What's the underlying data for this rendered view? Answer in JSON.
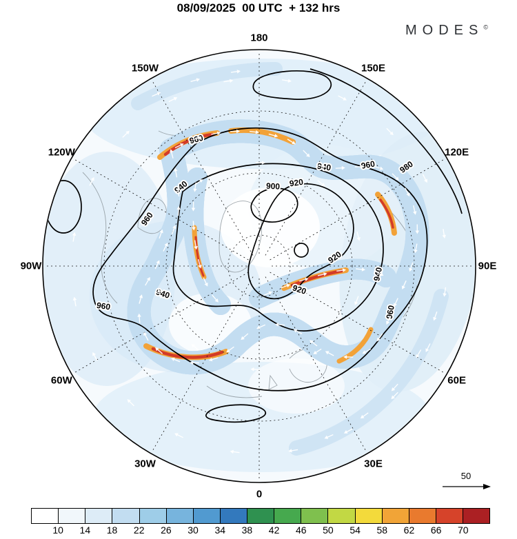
{
  "header": {
    "title": "08/09/2025  00 UTC  + 132 hrs",
    "brand": "MODES",
    "brand_mark": "©"
  },
  "map": {
    "lon_labels": [
      "180",
      "150E",
      "120E",
      "90E",
      "60E",
      "30E",
      "0",
      "30W",
      "60W",
      "90W",
      "120W",
      "150W"
    ],
    "contour_labels": {
      "h900": "900",
      "h920": "920",
      "h940": "940",
      "h960": "960",
      "h980": "980"
    },
    "reference_arrow_label": "50"
  },
  "colorbar": {
    "ticks": [
      "10",
      "14",
      "18",
      "22",
      "26",
      "30",
      "34",
      "38",
      "42",
      "46",
      "50",
      "54",
      "58",
      "62",
      "66",
      "70"
    ],
    "colors": [
      "#ffffff",
      "#f1f7fb",
      "#ddecf7",
      "#c2ddf1",
      "#9ecde8",
      "#77b4dd",
      "#519ad0",
      "#3379bd",
      "#2f9150",
      "#46a94e",
      "#7fc04e",
      "#c2d844",
      "#f3da3b",
      "#f1a437",
      "#e97a2e",
      "#d6432a",
      "#ab2023"
    ]
  },
  "chart_data": {
    "type": "heatmap",
    "title": "08/09/2025 00 UTC + 132 hrs",
    "map_projection": "north polar stereographic",
    "shaded_field_levels": [
      10,
      14,
      18,
      22,
      26,
      30,
      34,
      38,
      42,
      46,
      50,
      54,
      58,
      62,
      66,
      70
    ],
    "palette": [
      "#ffffff",
      "#f1f7fb",
      "#ddecf7",
      "#c2ddf1",
      "#9ecde8",
      "#77b4dd",
      "#519ad0",
      "#3379bd",
      "#2f9150",
      "#46a94e",
      "#7fc04e",
      "#c2d844",
      "#f3da3b",
      "#f1a437",
      "#e97a2e",
      "#d6432a",
      "#ab2023"
    ],
    "contour_levels": [
      900,
      920,
      940,
      960,
      980
    ],
    "longitude_ring_labels": [
      "180",
      "150E",
      "120E",
      "90E",
      "60E",
      "30E",
      "0",
      "30W",
      "60W",
      "90W",
      "120W",
      "150W"
    ],
    "reference_vector": 50,
    "legend_position": "bottom"
  }
}
